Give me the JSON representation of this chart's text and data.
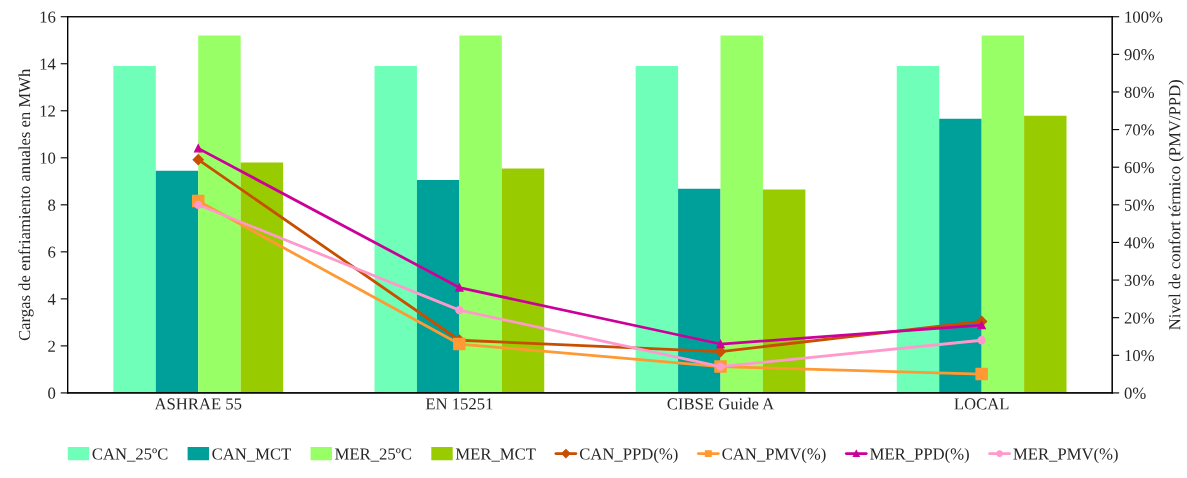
{
  "chart_data": {
    "type": "bar",
    "ylabel": "Cargas de enfriamiento anuales en MWh",
    "y2label": "Nivel de confort térmico (PMV/PPD)",
    "categories": [
      "ASHRAE 55",
      "EN 15251",
      "CIBSE Guide A",
      "LOCAL"
    ],
    "series": [
      {
        "name": "CAN_25ºC",
        "color": "#70ffb8",
        "values": [
          13.9,
          13.9,
          13.9,
          13.9
        ]
      },
      {
        "name": "CAN_MCT",
        "color": "#00a09a",
        "values": [
          9.45,
          9.06,
          8.68,
          11.66
        ]
      },
      {
        "name": "MER_25ºC",
        "color": "#99ff66",
        "values": [
          15.2,
          15.2,
          15.2,
          15.2
        ]
      },
      {
        "name": "MER_MCT",
        "color": "#99cc00",
        "values": [
          9.8,
          9.55,
          8.65,
          11.79
        ]
      },
      {
        "name": "CAN_PPD(%)",
        "type": "line",
        "axis": "y2",
        "marker": "diamond",
        "color": "#c84f00",
        "values": [
          62,
          14,
          11,
          19
        ]
      },
      {
        "name": "CAN_PMV(%)",
        "type": "line",
        "axis": "y2",
        "marker": "square",
        "color": "#ff9933",
        "values": [
          51,
          13,
          7,
          5
        ]
      },
      {
        "name": "MER_PPD(%)",
        "type": "line",
        "axis": "y2",
        "marker": "triangle",
        "color": "#cc0099",
        "values": [
          65,
          28,
          13,
          18
        ]
      },
      {
        "name": "MER_PMV(%)",
        "type": "line",
        "axis": "y2",
        "marker": "circle",
        "color": "#ff99cc",
        "values": [
          50,
          22,
          7,
          14
        ]
      }
    ],
    "ylim": [
      0,
      16
    ],
    "yticks": [
      0,
      2,
      4,
      6,
      8,
      10,
      12,
      14,
      16
    ],
    "y2lim": [
      0,
      100
    ],
    "y2ticks": [
      {
        "value": 0,
        "label": "0%"
      },
      {
        "value": 10,
        "label": "10%"
      },
      {
        "value": 20,
        "label": "20%"
      },
      {
        "value": 30,
        "label": "30%"
      },
      {
        "value": 40,
        "label": "40%"
      },
      {
        "value": 50,
        "label": "50%"
      },
      {
        "value": 60,
        "label": "60%"
      },
      {
        "value": 70,
        "label": "70%"
      },
      {
        "value": 80,
        "label": "80%"
      },
      {
        "value": 90,
        "label": "90%"
      },
      {
        "value": 100,
        "label": "100%"
      }
    ],
    "grid": false,
    "legend": "bottom"
  }
}
